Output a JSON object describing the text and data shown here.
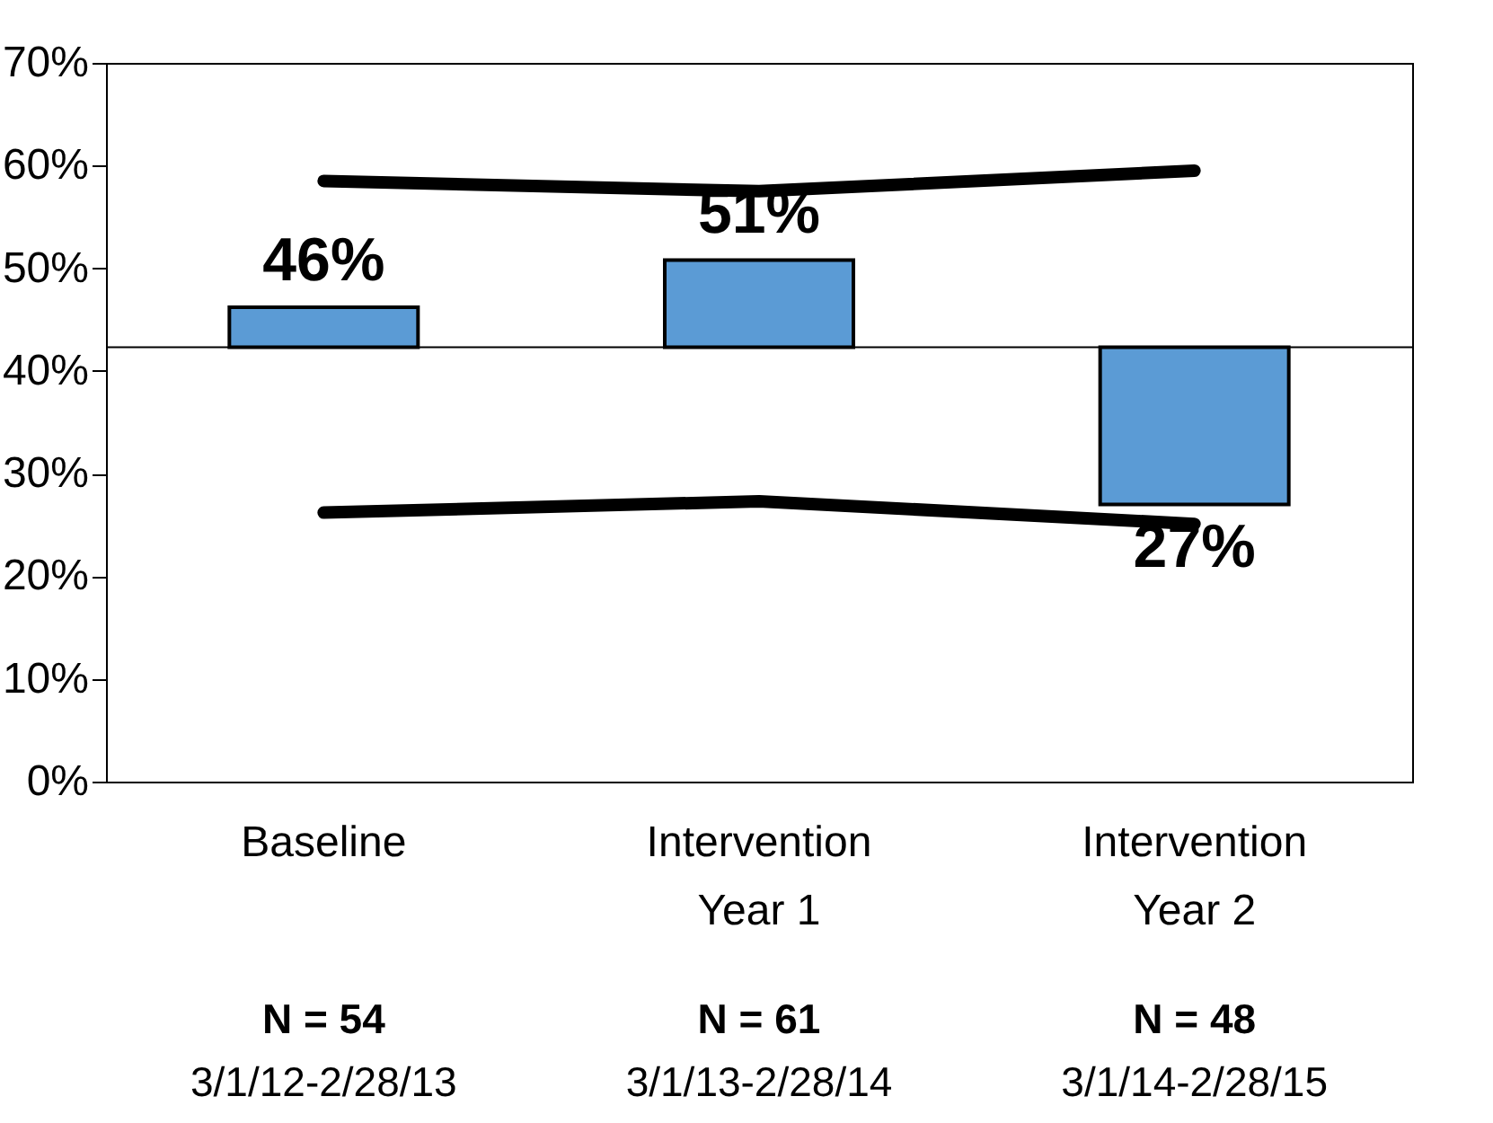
{
  "chart_data": {
    "type": "bar",
    "categories": [
      "Baseline",
      "Intervention\nYear 1",
      "Intervention\nYear 2"
    ],
    "base": [
      42.3,
      42.3,
      42.3
    ],
    "values": [
      3.9,
      8.5,
      -15.3
    ],
    "value_labels": [
      "46%",
      "51%",
      "27%"
    ],
    "color": "#5b9bd5",
    "series": [
      {
        "type": "line",
        "color": "#000000",
        "values": [
          58.5,
          57.5,
          59.5
        ]
      },
      {
        "type": "line",
        "color": "#000000",
        "values": [
          26.2,
          27.3,
          25.1
        ]
      }
    ],
    "ref_lines": [
      {
        "axis": "y",
        "value": 42.3,
        "color": "#000000"
      }
    ],
    "ylim": [
      0,
      70
    ],
    "yticks": [
      {
        "value": 0,
        "label": "0%"
      },
      {
        "value": 10,
        "label": "10%"
      },
      {
        "value": 20,
        "label": "20%"
      },
      {
        "value": 30,
        "label": "30%"
      },
      {
        "value": 40,
        "label": "40%"
      },
      {
        "value": 50,
        "label": "50%"
      },
      {
        "value": 60,
        "label": "60%"
      },
      {
        "value": 70,
        "label": "70%"
      }
    ],
    "annotations": [
      "N = 54",
      "3/1/12-2/28/13",
      "N = 61",
      "3/1/13-2/28/14",
      "N = 48",
      "3/1/14-2/28/15"
    ],
    "grid": false
  }
}
